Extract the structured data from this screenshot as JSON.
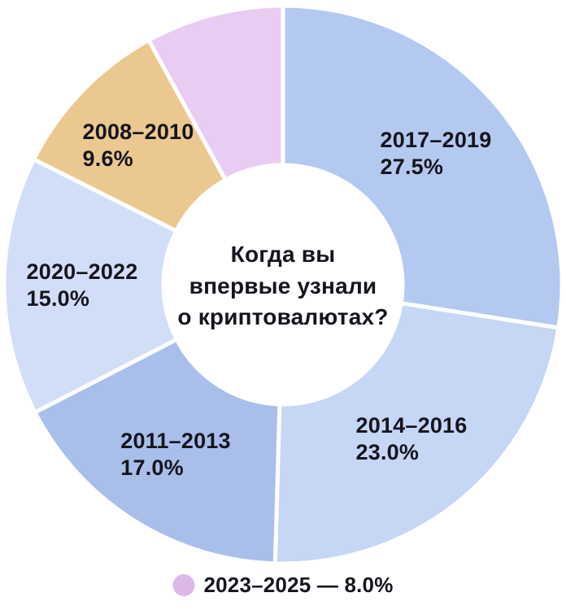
{
  "page": {
    "background": "#ffffff"
  },
  "chart_data": {
    "type": "pie",
    "variant": "donut",
    "title": "Когда вы впервые узнали о криптовалютах?",
    "title_lines": [
      "Когда вы",
      "впервые узнали",
      "о криптовалютах?"
    ],
    "start_angle_deg": 0,
    "direction": "clockwise",
    "units": "%",
    "text_color": "#15151d",
    "separator_color": "#ffffff",
    "segments": [
      {
        "label": "2017–2019",
        "value": 27.5,
        "pct_label": "27.5%",
        "color": "#b4c9f0",
        "show_label": true
      },
      {
        "label": "2014–2016",
        "value": 23.0,
        "pct_label": "23.0%",
        "color": "#c6d6f5",
        "show_label": true
      },
      {
        "label": "2011–2013",
        "value": 17.0,
        "pct_label": "17.0%",
        "color": "#a9bfea",
        "show_label": true
      },
      {
        "label": "2020–2022",
        "value": 15.0,
        "pct_label": "15.0%",
        "color": "#d2def7",
        "show_label": true
      },
      {
        "label": "2008–2010",
        "value": 9.6,
        "pct_label": "9.6%",
        "color": "#ebc88f",
        "show_label": true
      },
      {
        "label": "2023–2025",
        "value": 8.0,
        "pct_label": "8.0%",
        "color": "#e9ccf1",
        "show_label": false
      }
    ],
    "legend": {
      "position": "bottom",
      "label": "2023–2025 — 8.0%",
      "color": "#dcb8e8"
    }
  }
}
